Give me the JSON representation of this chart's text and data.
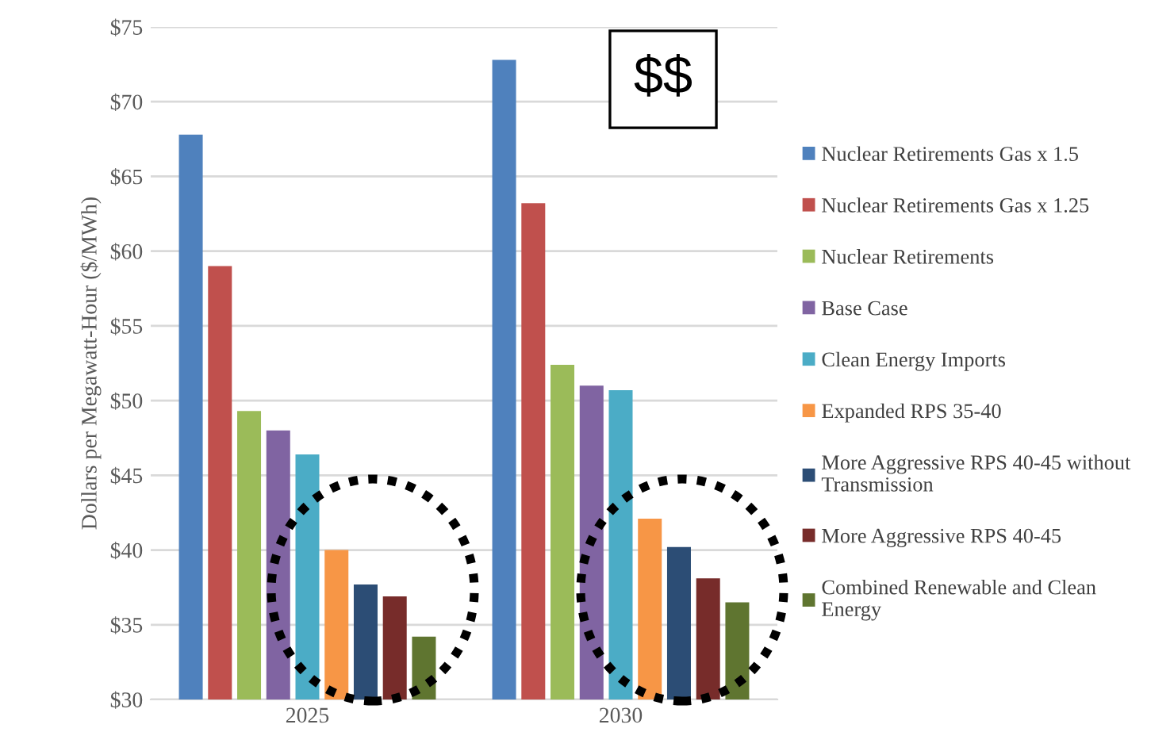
{
  "chart_data": {
    "type": "bar",
    "ylabel": "Dollars per Megawatt-Hour ($/MWh)",
    "categories": [
      "2025",
      "2030"
    ],
    "series": [
      {
        "name": "Nuclear Retirements Gas x 1.5",
        "color": "#4f81bd",
        "values": [
          67.8,
          72.8
        ]
      },
      {
        "name": "Nuclear Retirements Gas x 1.25",
        "color": "#c0504d",
        "values": [
          59.0,
          63.2
        ]
      },
      {
        "name": "Nuclear Retirements",
        "color": "#9bbb59",
        "values": [
          49.3,
          52.4
        ]
      },
      {
        "name": "Base Case",
        "color": "#8064a2",
        "values": [
          48.0,
          51.0
        ]
      },
      {
        "name": "Clean Energy Imports",
        "color": "#4bacc6",
        "values": [
          46.4,
          50.7
        ]
      },
      {
        "name": "Expanded RPS 35-40",
        "color": "#f79646",
        "values": [
          40.0,
          42.1
        ]
      },
      {
        "name": "More Aggressive RPS 40-45 without\nTransmission",
        "color": "#2c4d75",
        "values": [
          37.7,
          40.2
        ]
      },
      {
        "name": "More Aggressive RPS 40-45",
        "color": "#772c2a",
        "values": [
          36.9,
          38.1
        ]
      },
      {
        "name": "Combined Renewable and Clean\nEnergy",
        "color": "#5f7530",
        "values": [
          34.2,
          36.5
        ]
      }
    ],
    "ylim": [
      30,
      75
    ],
    "yticks": [
      {
        "value": 30,
        "label": "$30"
      },
      {
        "value": 35,
        "label": "$35"
      },
      {
        "value": 40,
        "label": "$40"
      },
      {
        "value": 45,
        "label": "$45"
      },
      {
        "value": 50,
        "label": "$50"
      },
      {
        "value": 55,
        "label": "$55"
      },
      {
        "value": 60,
        "label": "$60"
      },
      {
        "value": 65,
        "label": "$65"
      },
      {
        "value": 70,
        "label": "$70"
      },
      {
        "value": 75,
        "label": "$75"
      }
    ],
    "grid": "y",
    "legend": "right",
    "annotations": [
      "$$"
    ]
  }
}
